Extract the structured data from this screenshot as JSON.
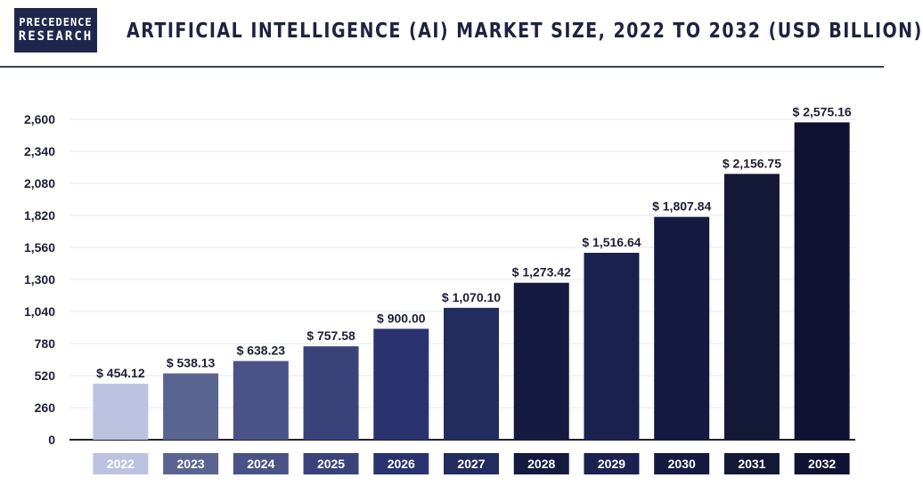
{
  "header": {
    "logo_line1": "PRECEDENCE",
    "logo_line2": "RESEARCH",
    "title": "ARTIFICIAL INTELLIGENCE (AI) MARKET SIZE, 2022 TO 2032 (USD BILLION)"
  },
  "chart_data": {
    "type": "bar",
    "title": "ARTIFICIAL INTELLIGENCE (AI) MARKET SIZE, 2022 TO 2032 (USD BILLION)",
    "categories": [
      "2022",
      "2023",
      "2024",
      "2025",
      "2026",
      "2027",
      "2028",
      "2029",
      "2030",
      "2031",
      "2032"
    ],
    "values": [
      454.12,
      538.13,
      638.23,
      757.58,
      900.0,
      1070.1,
      1273.42,
      1516.64,
      1807.84,
      2156.75,
      2575.16
    ],
    "value_labels": [
      "$ 454.12",
      "$ 538.13",
      "$ 638.23",
      "$ 757.58",
      "$ 900.00",
      "$ 1,070.10",
      "$ 1,273.42",
      "$ 1,516.64",
      "$ 1,807.84",
      "$ 2,156.75",
      "$ 2,575.16"
    ],
    "ylim": [
      0,
      2600
    ],
    "yticks": [
      0,
      260,
      520,
      780,
      1040,
      1300,
      1560,
      1820,
      2080,
      2340,
      2600
    ],
    "ytick_labels": [
      "0",
      "260",
      "520",
      "780",
      "1,040",
      "1,300",
      "1,560",
      "1,820",
      "2,080",
      "2,340",
      "2,600"
    ],
    "grid": true,
    "xlabel": "",
    "ylabel": "",
    "colors": [
      "#bcc3e0",
      "#5a6491",
      "#4a5388",
      "#3a4379",
      "#2a3370",
      "#232c5e",
      "#151b40",
      "#1b2250",
      "#151a42",
      "#141837",
      "#0f1232"
    ]
  }
}
